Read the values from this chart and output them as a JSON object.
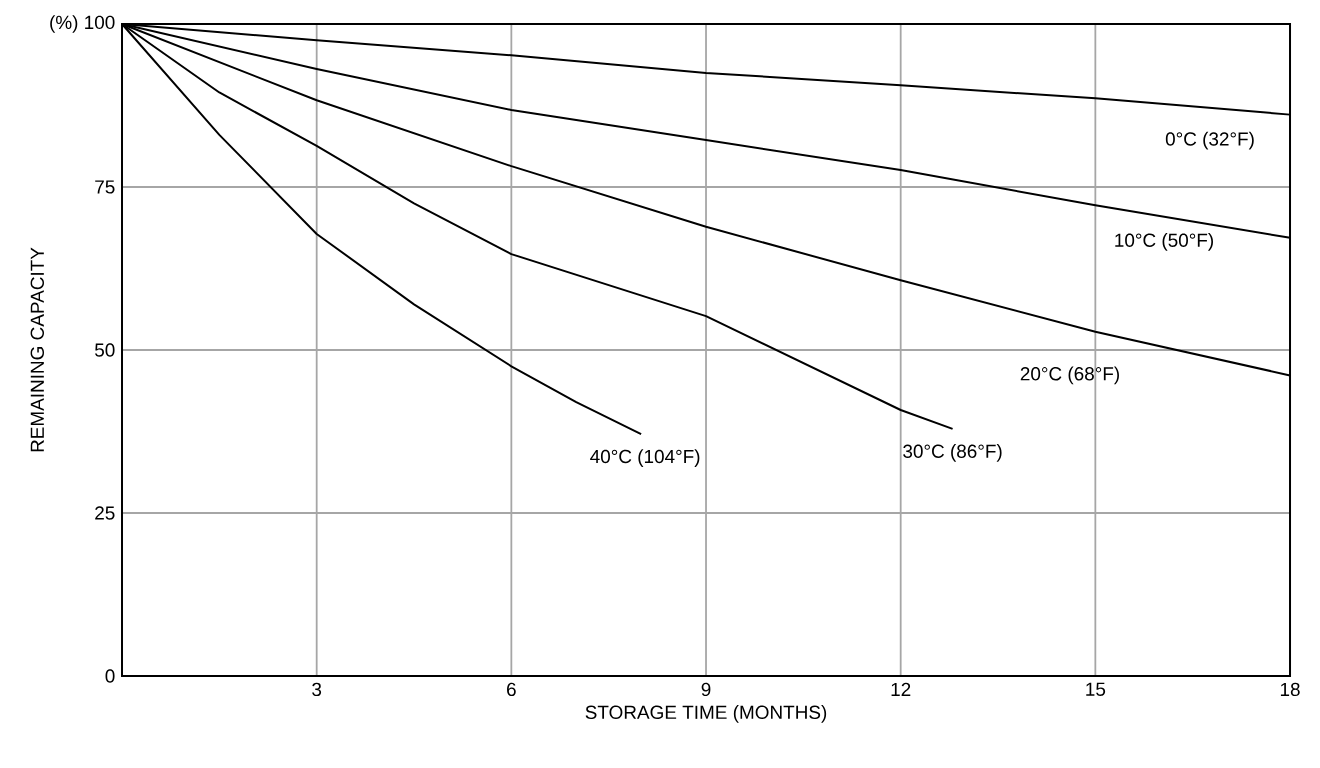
{
  "chart_data": {
    "type": "line",
    "xlabel": "STORAGE TIME (MONTHS)",
    "ylabel": "REMAINING CAPACITY",
    "xlim": [
      0,
      18
    ],
    "ylim": [
      0,
      100
    ],
    "xticks": [
      3,
      6,
      9,
      12,
      15,
      18
    ],
    "yticks": [
      0,
      25,
      50,
      75,
      {
        "value": 100,
        "label": "(%) 100"
      }
    ],
    "grid": true,
    "marker": "none",
    "line_style": "solid",
    "series": [
      {
        "name": "0°C (32°F)",
        "color": "#000000",
        "x": [
          0,
          3,
          6,
          9,
          12,
          15,
          18
        ],
        "values": [
          100,
          97.5,
          95.2,
          92.5,
          90.6,
          88.6,
          86.1
        ]
      },
      {
        "name": "10°C (50°F)",
        "color": "#000000",
        "x": [
          0,
          3,
          6,
          9,
          12,
          15,
          18
        ],
        "values": [
          100,
          93.1,
          86.8,
          82.2,
          77.6,
          72.2,
          67.2
        ]
      },
      {
        "name": "20°C (68°F)",
        "color": "#000000",
        "x": [
          0,
          3,
          6,
          9,
          12,
          15,
          18
        ],
        "values": [
          100,
          88.3,
          78.2,
          68.9,
          60.7,
          52.8,
          46.1
        ]
      },
      {
        "name": "30°C (86°F)",
        "color": "#000000",
        "x": [
          0,
          1.5,
          3,
          4.5,
          6,
          9,
          12,
          12.8
        ],
        "values": [
          100,
          89.5,
          81.3,
          72.5,
          64.7,
          55.2,
          40.8,
          37.9
        ]
      },
      {
        "name": "40°C (104°F)",
        "color": "#000000",
        "x": [
          0,
          1.5,
          3,
          4.5,
          6,
          7,
          8
        ],
        "values": [
          100,
          83,
          67.8,
          57,
          47.5,
          42,
          37.1
        ]
      }
    ]
  }
}
